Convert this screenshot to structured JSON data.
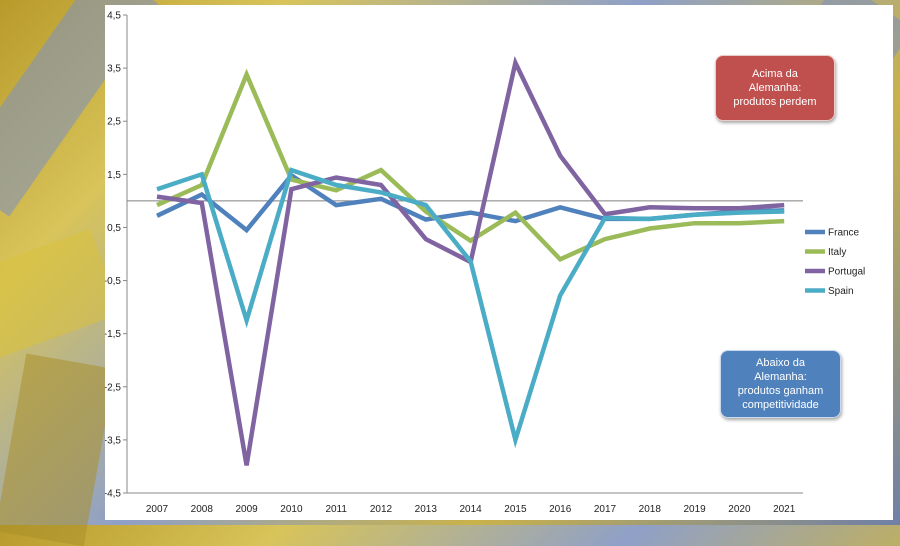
{
  "chart_data": {
    "type": "line",
    "title": "",
    "xlabel": "",
    "ylabel": "",
    "categories": [
      "2007",
      "2008",
      "2009",
      "2010",
      "2011",
      "2012",
      "2013",
      "2014",
      "2015",
      "2016",
      "2017",
      "2018",
      "2019",
      "2020",
      "2021"
    ],
    "ylim": [
      -4.5,
      4.5
    ],
    "y_ticks": [
      4.5,
      3.5,
      2.5,
      1.5,
      0.5,
      -0.5,
      -1.5,
      -2.5,
      -3.5,
      -4.5
    ],
    "y_tick_labels": [
      "4,5",
      "3,5",
      "2,5",
      "1,5",
      "0,5",
      "-0,5",
      "-1,5",
      "-2,5",
      "-3,5",
      "-4,5"
    ],
    "reference_line": 1.0,
    "grid": false,
    "legend_position": "right",
    "series": [
      {
        "name": "France",
        "color": "#4f81bd",
        "values": [
          0.72,
          1.12,
          0.45,
          1.48,
          0.92,
          1.04,
          0.65,
          0.78,
          0.62,
          0.88,
          0.66,
          0.66,
          0.74,
          0.8,
          0.82
        ]
      },
      {
        "name": "Italy",
        "color": "#9bbb59",
        "values": [
          0.92,
          1.3,
          3.38,
          1.4,
          1.2,
          1.58,
          0.8,
          0.25,
          0.78,
          -0.1,
          0.28,
          0.48,
          0.58,
          0.58,
          0.62
        ]
      },
      {
        "name": "Portugal",
        "color": "#8064a2",
        "values": [
          1.08,
          0.96,
          -3.98,
          1.22,
          1.44,
          1.3,
          0.28,
          -0.15,
          3.6,
          1.85,
          0.75,
          0.88,
          0.86,
          0.86,
          0.92
        ]
      },
      {
        "name": "Spain",
        "color": "#4bacc6",
        "values": [
          1.22,
          1.5,
          -1.25,
          1.58,
          1.3,
          1.16,
          0.92,
          -0.14,
          -3.5,
          -0.78,
          0.68,
          0.66,
          0.74,
          0.78,
          0.8
        ]
      }
    ],
    "annotations": [
      {
        "text": "Acima da\nAlemanha:\nprodutos perdem",
        "color": "#c0504d"
      },
      {
        "text": "Abaixo da\nAlemanha:\nprodutos ganham\ncompetitividade",
        "color": "#4f81bd"
      }
    ]
  }
}
